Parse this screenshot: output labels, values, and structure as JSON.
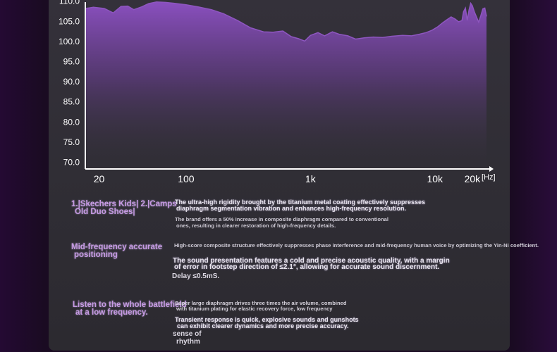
{
  "chart_data": {
    "type": "area",
    "x_axis_unit_label": "[Hz]",
    "x_scale": "log",
    "x_ticks": [
      {
        "value": 20,
        "label": "20"
      },
      {
        "value": 100,
        "label": "100"
      },
      {
        "value": 1000,
        "label": "1k"
      },
      {
        "value": 10000,
        "label": "10k"
      },
      {
        "value": 20000,
        "label": "20k"
      }
    ],
    "y_ticks": [
      "70.0",
      "75.0",
      "80.0",
      "85.0",
      "90.0",
      "95.0",
      "100.0",
      "105.0",
      "110.0"
    ],
    "ylim": [
      70,
      110
    ],
    "series": [
      {
        "x": [
          15.5,
          18,
          22,
          26,
          30,
          34,
          38,
          44,
          50,
          58,
          68,
          80,
          100,
          125,
          160,
          200,
          260,
          330,
          420,
          500,
          600,
          700,
          800,
          900,
          1000,
          1150,
          1300,
          1500,
          1700,
          2000,
          2300,
          2700,
          3200,
          3800,
          4500,
          5500,
          6500,
          7500,
          8500,
          9500,
          10500,
          11500,
          12500,
          13500,
          14500,
          15500,
          16500,
          17000,
          17600,
          18200,
          18800,
          19400,
          20000,
          20800,
          21600,
          22500,
          23400,
          24300,
          25200,
          26000
        ],
        "y": [
          108.2,
          108.5,
          108.2,
          107.1,
          108.7,
          108.8,
          107.9,
          108.6,
          109.4,
          109.8,
          109.7,
          109.5,
          109.1,
          108.6,
          107.9,
          106.9,
          105.2,
          103.4,
          102.4,
          102.3,
          102.6,
          101.2,
          100.7,
          100.1,
          101.5,
          102.2,
          101.4,
          102.4,
          101.8,
          101.4,
          100.6,
          100.9,
          101.1,
          101.0,
          101.3,
          101.5,
          101.4,
          101.8,
          102.2,
          102.8,
          103.6,
          104.6,
          105.4,
          106.1,
          105.6,
          104.9,
          105.2,
          107.4,
          108.3,
          105.3,
          107.8,
          109.5,
          108.9,
          107.3,
          106.1,
          104.8,
          106.4,
          108.1,
          108.3,
          106.2
        ]
      }
    ],
    "grid": false,
    "colors": {
      "line": "#8e56c0",
      "fill_top": "#8a4fbf",
      "fill_bottom": "#34313a",
      "axis": "#ffffff"
    }
  },
  "features": [
    {
      "title": "1.|Skechers Kids| 2.|Camps Old Duo Shoes|",
      "title_line1": "1.|Skechers Kids| 2.|Camps",
      "title_line2": "Old Duo Shoes|",
      "desc1_line1": "The ultra-high rigidity brought by the titanium metal coating effectively suppresses",
      "desc1_line2": "diaphragm segmentation vibration and enhances high-frequency resolution.",
      "desc2_line1": "The brand offers a 50% increase in composite diaphragm compared to conventional",
      "desc2_line2": "ones, resulting in clearer restoration of high-frequency details."
    },
    {
      "title_line1": "Mid-frequency accurate",
      "title_line2": "positioning",
      "desc1_line1": "High-score composite structure effectively suppresses phase interference and mid-frequency human voice by optimizing the Yin-Ni coefficient.",
      "desc2_line1": "The sound presentation features a cold and precise acoustic quality, with a margin",
      "desc2_line2": "of error in footstep direction of ≤2.1°, allowing for accurate sound discernment.",
      "desc3": "Delay ≤0.5mS."
    },
    {
      "title_line1": "Listen to the whole battlefield",
      "title_line2": "at a low frequency.",
      "desc1_line1": "Super large diaphragm drives three times the air volume, combined",
      "desc1_line2": "with titanium plating for elastic recovery force, low frequency",
      "desc2_line1": "Transient response is quick, explosive sounds and gunshots",
      "desc2_line2": "can exhibit clearer dynamics and more precise accuracy.",
      "desc3_line1": "sense of",
      "desc3_line2": "rhythm"
    }
  ]
}
